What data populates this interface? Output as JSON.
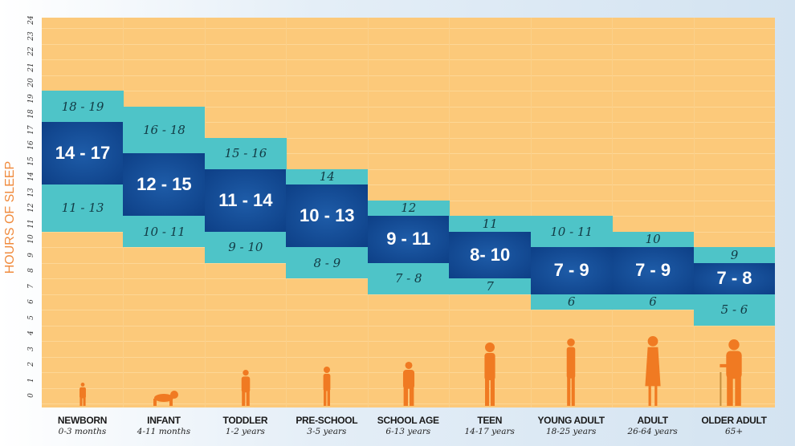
{
  "chart_data": {
    "type": "range-bar",
    "ylabel": "HOURS OF SLEEP",
    "ylim": [
      0,
      24
    ],
    "yticks": [
      "0",
      "1",
      "2",
      "3",
      "4",
      "5",
      "6",
      "7",
      "8",
      "9",
      "10",
      "11",
      "12",
      "13",
      "14",
      "15",
      "16",
      "17",
      "18",
      "19",
      "20",
      "21",
      "22",
      "23",
      "24"
    ],
    "grid": true,
    "colors": {
      "recommended": "#0f4a8f",
      "may_be_appropriate": "#4ec4c8",
      "background": "#fcc97a",
      "figures": "#f07a22",
      "ylabel": "#f08a3c"
    },
    "groups": [
      {
        "name": "NEWBORN",
        "age": "0-3 months",
        "low": "11 - 13",
        "rec": "14 - 17",
        "high": "18 - 19",
        "low_range": [
          11,
          13
        ],
        "rec_range": [
          14,
          17
        ],
        "high_range": [
          18,
          19
        ],
        "figure": "newborn-icon"
      },
      {
        "name": "INFANT",
        "age": "4-11 months",
        "low": "10 - 11",
        "rec": "12 - 15",
        "high": "16 - 18",
        "low_range": [
          10,
          11
        ],
        "rec_range": [
          12,
          15
        ],
        "high_range": [
          16,
          18
        ],
        "figure": "crawling-infant-icon"
      },
      {
        "name": "TODDLER",
        "age": "1-2 years",
        "low": "9 - 10",
        "rec": "11 - 14",
        "high": "15 - 16",
        "low_range": [
          9,
          10
        ],
        "rec_range": [
          11,
          14
        ],
        "high_range": [
          15,
          16
        ],
        "figure": "toddler-icon"
      },
      {
        "name": "PRE-SCHOOL",
        "age": "3-5 years",
        "low": "8 - 9",
        "rec": "10 - 13",
        "high": "14",
        "low_range": [
          8,
          9
        ],
        "rec_range": [
          10,
          13
        ],
        "high_range": [
          14,
          14
        ],
        "figure": "preschooler-icon"
      },
      {
        "name": "SCHOOL AGE",
        "age": "6-13 years",
        "low": "7 - 8",
        "rec": "9 - 11",
        "high": "12",
        "low_range": [
          7,
          8
        ],
        "rec_range": [
          9,
          11
        ],
        "high_range": [
          12,
          12
        ],
        "figure": "child-icon"
      },
      {
        "name": "TEEN",
        "age": "14-17 years",
        "low": "7",
        "rec": "8- 10",
        "high": "11",
        "low_range": [
          7,
          7
        ],
        "rec_range": [
          8,
          10
        ],
        "high_range": [
          11,
          11
        ],
        "figure": "teen-icon"
      },
      {
        "name": "YOUNG ADULT",
        "age": "18-25 years",
        "low": "6",
        "rec": "7 - 9",
        "high": "10 - 11",
        "low_range": [
          6,
          6
        ],
        "rec_range": [
          7,
          9
        ],
        "high_range": [
          10,
          11
        ],
        "figure": "young-adult-icon"
      },
      {
        "name": "ADULT",
        "age": "26-64 years",
        "low": "6",
        "rec": "7 - 9",
        "high": "10",
        "low_range": [
          6,
          6
        ],
        "rec_range": [
          7,
          9
        ],
        "high_range": [
          10,
          10
        ],
        "figure": "adult-icon"
      },
      {
        "name": "OLDER ADULT",
        "age": "65+",
        "low": "5 - 6",
        "rec": "7 - 8",
        "high": "9",
        "low_range": [
          5,
          6
        ],
        "rec_range": [
          7,
          8
        ],
        "high_range": [
          9,
          9
        ],
        "figure": "older-adult-with-cane-icon"
      }
    ]
  }
}
